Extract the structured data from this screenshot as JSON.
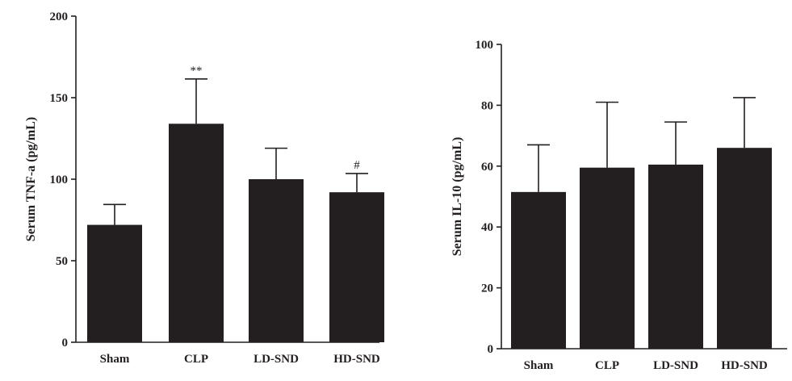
{
  "chart_data": [
    {
      "type": "bar",
      "ylabel": "Serum TNF-a (pg/mL)",
      "categories": [
        "Sham",
        "CLP",
        "LD-SND",
        "HD-SND"
      ],
      "values": [
        72,
        134,
        100,
        92
      ],
      "errors": [
        12.5,
        27.5,
        19,
        11.5
      ],
      "annotations": [
        "",
        "**",
        "",
        "#"
      ],
      "ylim": [
        0,
        200
      ],
      "yticks": [
        0,
        50,
        100,
        150,
        200
      ],
      "bar_color": "#231f20",
      "grid": false
    },
    {
      "type": "bar",
      "ylabel": "Serum IL-10 (pg/mL)",
      "categories": [
        "Sham",
        "CLP",
        "LD-SND",
        "HD-SND"
      ],
      "values": [
        51.5,
        59.5,
        60.5,
        66
      ],
      "errors": [
        15.5,
        21.5,
        14,
        16.5
      ],
      "annotations": [
        "",
        "",
        "",
        ""
      ],
      "ylim": [
        0,
        100
      ],
      "yticks": [
        0,
        20,
        40,
        60,
        80,
        100
      ],
      "bar_color": "#231f20",
      "grid": false
    }
  ]
}
